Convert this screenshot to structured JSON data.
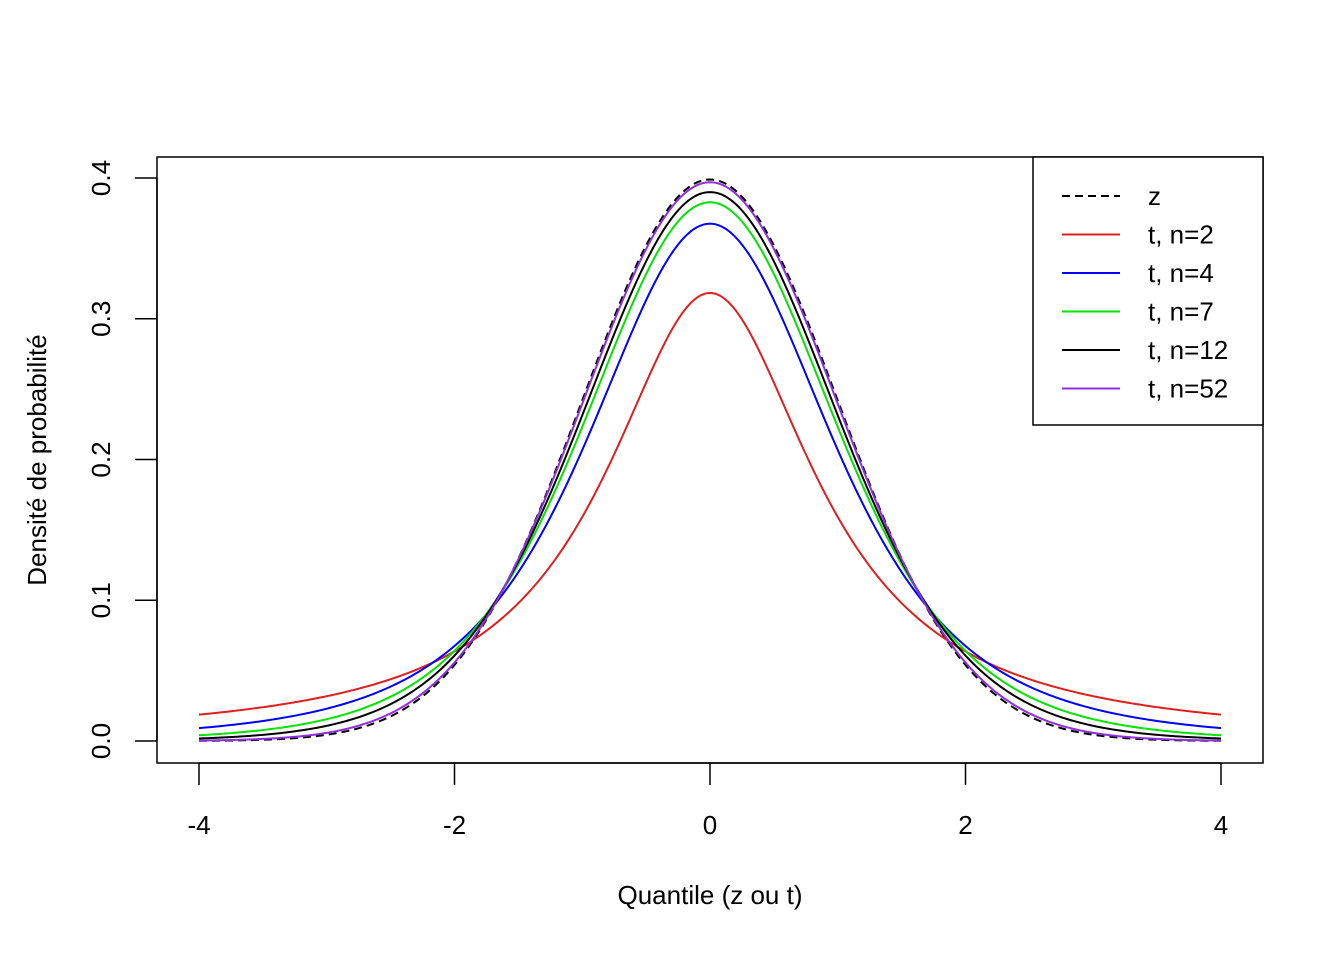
{
  "chart_data": {
    "type": "line",
    "title": "",
    "xlabel": "Quantile (z ou t)",
    "ylabel": "Densité de probabilité",
    "xlim": [
      -4,
      4
    ],
    "ylim": [
      0,
      0.4
    ],
    "xticks": [
      "-4",
      "-2",
      "0",
      "2",
      "4"
    ],
    "yticks": [
      "0.0",
      "0.1",
      "0.2",
      "0.3",
      "0.4"
    ],
    "grid": false,
    "legend_position": "top-right",
    "series": [
      {
        "name": "z",
        "distribution": "normal",
        "df": null,
        "color": "#000000",
        "dash": "dashed"
      },
      {
        "name": "t, n=2",
        "distribution": "student-t",
        "df": 1,
        "color": "#DF1F1F",
        "dash": "solid"
      },
      {
        "name": "t, n=4",
        "distribution": "student-t",
        "df": 3,
        "color": "#0000FF",
        "dash": "solid"
      },
      {
        "name": "t, n=7",
        "distribution": "student-t",
        "df": 6,
        "color": "#00E400",
        "dash": "solid"
      },
      {
        "name": "t, n=12",
        "distribution": "student-t",
        "df": 11,
        "color": "#000000",
        "dash": "solid"
      },
      {
        "name": "t, n=52",
        "distribution": "student-t",
        "df": 51,
        "color": "#8F2FDF",
        "dash": "solid"
      }
    ]
  }
}
